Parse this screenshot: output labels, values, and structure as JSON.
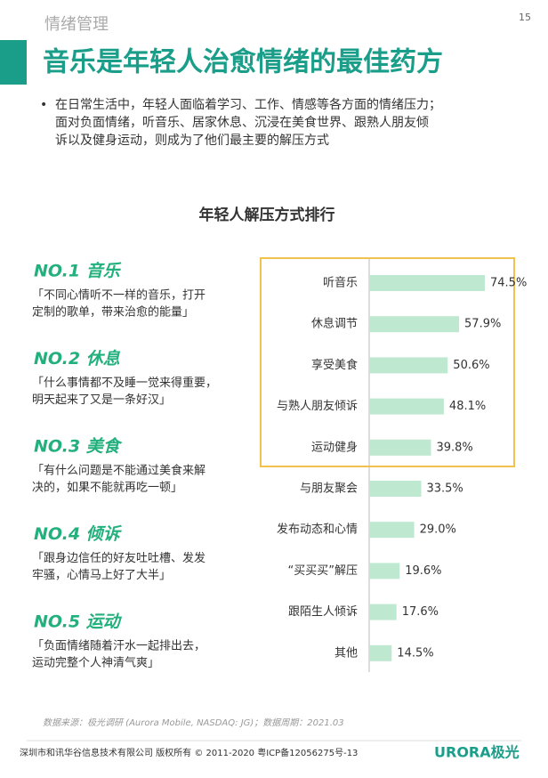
{
  "header": {
    "section": "情绪管理",
    "page": "15",
    "title": "音乐是年轻人治愈情绪的最佳药方"
  },
  "bullet": [
    "在日常生活中，年轻人面临着学习、工作、情感等各方面的情绪压力；",
    "面对负面情绪，听音乐、居家休息、沉浸在美食世界、跟熟人朋友倾",
    "诉以及健身运动，则成为了他们最主要的解压方式"
  ],
  "chart_data": {
    "type": "bar",
    "orientation": "horizontal",
    "title": "年轻人解压方式排行",
    "color": "#bfe8d0",
    "categories": [
      "听音乐",
      "休息调节",
      "享受美食",
      "与熟人朋友倾诉",
      "运动健身",
      "与朋友聚会",
      "发布动态和心情",
      "“买买买”解压",
      "跟陌生人倾诉",
      "其他"
    ],
    "values": [
      74.5,
      57.9,
      50.6,
      48.1,
      39.8,
      33.5,
      29.0,
      19.6,
      17.6,
      14.5
    ],
    "value_labels": [
      "74.5%",
      "57.9%",
      "50.6%",
      "48.1%",
      "39.8%",
      "33.5%",
      "29.0%",
      "19.6%",
      "17.6%",
      "14.5%"
    ]
  },
  "rankings": [
    {
      "title": "NO.1 音乐",
      "quote": [
        "「不同心情听不一样的音乐，打开",
        "定制的歌单，带来治愈的能量」"
      ]
    },
    {
      "title": "NO.2 休息",
      "quote": [
        "「什么事情都不及睡一觉来得重要，",
        "明天起来了又是一条好汉」"
      ]
    },
    {
      "title": "NO.3 美食",
      "quote": [
        "「有什么问题是不能通过美食来解",
        "决的，如果不能就再吃一顿」"
      ]
    },
    {
      "title": "NO.4 倾诉",
      "quote": [
        "「跟身边信任的好友吐吐槽、发发",
        "牢骚，心情马上好了大半」"
      ]
    },
    {
      "title": "NO.5 运动",
      "quote": [
        "「负面情绪随着汗水一起排出去，",
        "运动完整个人神清气爽」"
      ]
    }
  ],
  "source": "数据来源：极光调研 (Aurora Mobile, NASDAQ: JG)；数据周期：2021.03",
  "footer": {
    "copyright": "深圳市和讯华谷信息技术有限公司 版权所有 © 2011-2020 粤ICP备12056275号-13",
    "logo": "URORA极光"
  }
}
